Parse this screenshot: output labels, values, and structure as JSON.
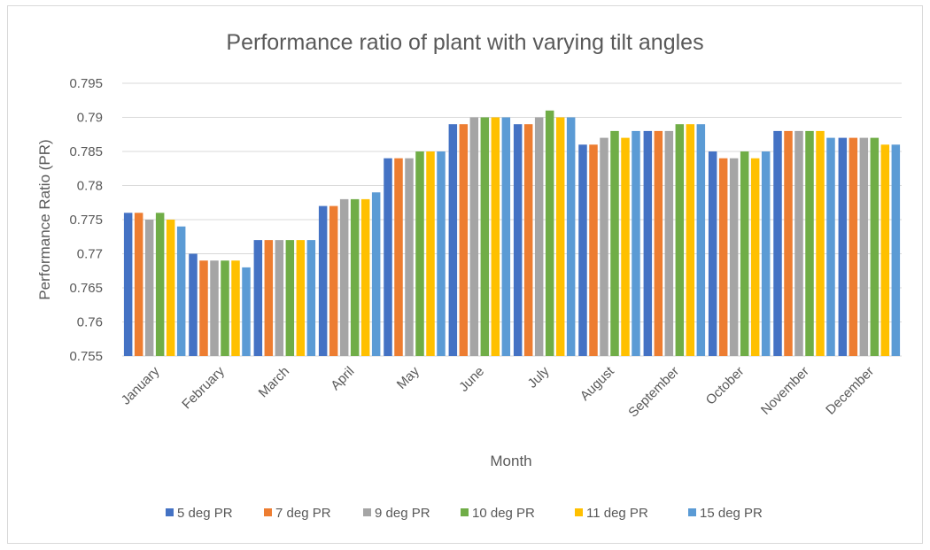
{
  "chart_data": {
    "type": "bar",
    "title": "Performance ratio of plant with varying tilt angles",
    "xlabel": "Month",
    "ylabel": "Performance Ratio (PR)",
    "ylim": [
      0.755,
      0.795
    ],
    "yticks": [
      "0.755",
      "0.76",
      "0.765",
      "0.77",
      "0.775",
      "0.78",
      "0.785",
      "0.79",
      "0.795"
    ],
    "ytick_values": [
      0.755,
      0.76,
      0.765,
      0.77,
      0.775,
      0.78,
      0.785,
      0.79,
      0.795
    ],
    "grid": true,
    "legend_position": "bottom",
    "categories": [
      "January",
      "February",
      "March",
      "April",
      "May",
      "June",
      "July",
      "August",
      "September",
      "October",
      "November",
      "December"
    ],
    "series": [
      {
        "name": "5 deg PR",
        "color": "#4472C4",
        "values": [
          0.776,
          0.77,
          0.772,
          0.777,
          0.784,
          0.789,
          0.789,
          0.786,
          0.788,
          0.785,
          0.788,
          0.787
        ]
      },
      {
        "name": "7 deg PR",
        "color": "#ED7D31",
        "values": [
          0.776,
          0.769,
          0.772,
          0.777,
          0.784,
          0.789,
          0.789,
          0.786,
          0.788,
          0.784,
          0.788,
          0.787
        ]
      },
      {
        "name": "9 deg PR",
        "color": "#A5A5A5",
        "values": [
          0.775,
          0.769,
          0.772,
          0.778,
          0.784,
          0.79,
          0.79,
          0.787,
          0.788,
          0.784,
          0.788,
          0.787
        ]
      },
      {
        "name": "10 deg PR",
        "color": "#70AD47",
        "values": [
          0.776,
          0.769,
          0.772,
          0.778,
          0.785,
          0.79,
          0.791,
          0.788,
          0.789,
          0.785,
          0.788,
          0.787
        ]
      },
      {
        "name": "11 deg PR",
        "color": "#FFC000",
        "values": [
          0.775,
          0.769,
          0.772,
          0.778,
          0.785,
          0.79,
          0.79,
          0.787,
          0.789,
          0.784,
          0.788,
          0.786
        ]
      },
      {
        "name": "15 deg PR",
        "color": "#5B9BD5",
        "values": [
          0.774,
          0.768,
          0.772,
          0.779,
          0.785,
          0.79,
          0.79,
          0.788,
          0.789,
          0.785,
          0.787,
          0.786
        ]
      }
    ]
  }
}
